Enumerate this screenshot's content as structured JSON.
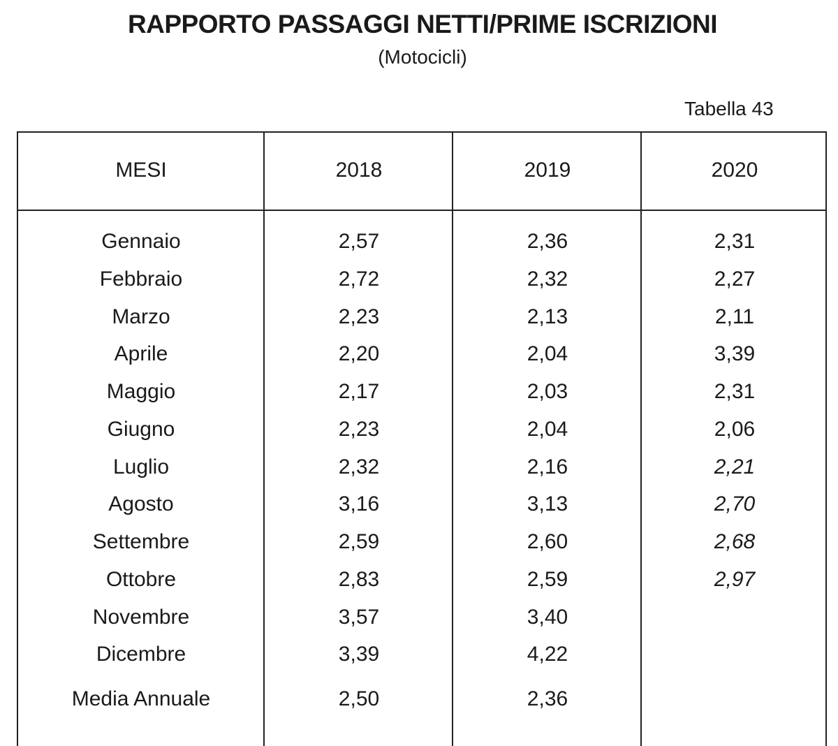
{
  "title": "RAPPORTO PASSAGGI NETTI/PRIME ISCRIZIONI",
  "subtitle": "(Motocicli)",
  "table_number": "Tabella 43",
  "headers": [
    "MESI",
    "2018",
    "2019",
    "2020"
  ],
  "rows": [
    {
      "month": "Gennaio",
      "y2018": "2,57",
      "y2019": "2,36",
      "y2020": "2,31"
    },
    {
      "month": "Febbraio",
      "y2018": "2,72",
      "y2019": "2,32",
      "y2020": "2,27"
    },
    {
      "month": "Marzo",
      "y2018": "2,23",
      "y2019": "2,13",
      "y2020": "2,11"
    },
    {
      "month": "Aprile",
      "y2018": "2,20",
      "y2019": "2,04",
      "y2020": "3,39"
    },
    {
      "month": "Maggio",
      "y2018": "2,17",
      "y2019": "2,03",
      "y2020": "2,31"
    },
    {
      "month": "Giugno",
      "y2018": "2,23",
      "y2019": "2,04",
      "y2020": "2,06"
    },
    {
      "month": "Luglio",
      "y2018": "2,32",
      "y2019": "2,16",
      "y2020": "2,21"
    },
    {
      "month": "Agosto",
      "y2018": "3,16",
      "y2019": "3,13",
      "y2020": "2,70"
    },
    {
      "month": "Settembre",
      "y2018": "2,59",
      "y2019": "2,60",
      "y2020": "2,68"
    },
    {
      "month": "Ottobre",
      "y2018": "2,83",
      "y2019": "2,59",
      "y2020": "2,97"
    },
    {
      "month": "Novembre",
      "y2018": "3,57",
      "y2019": "3,40",
      "y2020": ""
    },
    {
      "month": "Dicembre",
      "y2018": "3,39",
      "y2019": "4,22",
      "y2020": ""
    }
  ],
  "annual_average": {
    "label": "Media Annuale",
    "y2018": "2,50",
    "y2019": "2,36",
    "y2020": ""
  }
}
